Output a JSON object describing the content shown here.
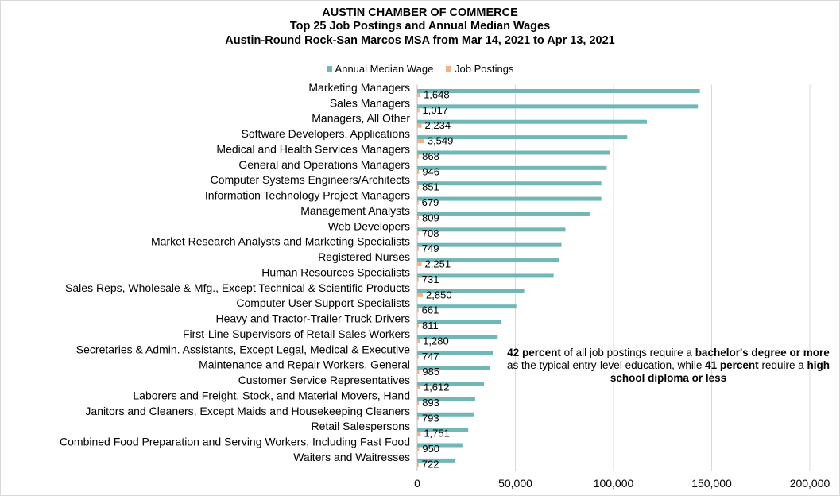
{
  "chart_data": {
    "type": "bar",
    "orientation": "horizontal",
    "title": [
      "AUSTIN CHAMBER OF COMMERCE",
      "Top 25 Job Postings and Annual Median Wages",
      "Austin-Round Rock-San Marcos MSA from Mar 14, 2021 to Apr 13, 2021"
    ],
    "xlabel": "",
    "ylabel": "",
    "xlim": [
      0,
      200000
    ],
    "x_ticks": [
      "0",
      "50,000",
      "100,000",
      "150,000",
      "200,000"
    ],
    "grid": "vertical",
    "legend_position": "top",
    "categories": [
      "Marketing Managers",
      "Sales Managers",
      "Managers, All Other",
      "Software Developers, Applications",
      "Medical and Health Services Managers",
      "General and Operations Managers",
      "Computer Systems Engineers/Architects",
      "Information Technology Project Managers",
      "Management Analysts",
      "Web Developers",
      "Market Research Analysts and Marketing Specialists",
      "Registered Nurses",
      "Human Resources Specialists",
      "Sales Reps, Wholesale & Mfg., Except Technical & Scientific Products",
      "Computer User Support Specialists",
      "Heavy and Tractor-Trailer Truck Drivers",
      "First-Line Supervisors of Retail Sales Workers",
      "Secretaries & Admin. Assistants, Except Legal, Medical & Executive",
      "Maintenance and Repair Workers, General",
      "Customer Service Representatives",
      "Laborers and Freight, Stock, and Material Movers, Hand",
      "Janitors and Cleaners, Except Maids and Housekeeping Cleaners",
      "Retail Salespersons",
      "Combined Food Preparation and Serving Workers, Including Fast Food",
      "Waiters and Waitresses"
    ],
    "series": [
      {
        "name": "Annual Median Wage",
        "color": "#70b8b8",
        "values": [
          144000,
          143000,
          117000,
          107000,
          98000,
          96500,
          93800,
          93800,
          88000,
          75500,
          73500,
          72500,
          69500,
          54500,
          50500,
          43000,
          41000,
          38500,
          37000,
          34000,
          29500,
          29000,
          26000,
          23000,
          19500
        ]
      },
      {
        "name": "Job Postings",
        "color": "#f4b183",
        "values": [
          1648,
          1017,
          2234,
          3549,
          868,
          946,
          851,
          679,
          809,
          708,
          749,
          2251,
          731,
          2850,
          661,
          811,
          1280,
          747,
          985,
          1612,
          893,
          793,
          1751,
          950,
          722
        ],
        "labels": [
          "1,648",
          "1,017",
          "2,234",
          "3,549",
          "868",
          "946",
          "851",
          "679",
          "809",
          "708",
          "749",
          "2,251",
          "731",
          "2,850",
          "661",
          "811",
          "1,280",
          "747",
          "985",
          "1,612",
          "893",
          "793",
          "1,751",
          "950",
          "722"
        ]
      }
    ]
  },
  "annotation": {
    "parts": [
      {
        "text": "42 percent",
        "bold": true
      },
      {
        "text": " of all job postings require a ",
        "bold": false
      },
      {
        "text": "bachelor's degree or more",
        "bold": true
      },
      {
        "text": " as the typical entry-level education, while ",
        "bold": false
      },
      {
        "text": "41 percent",
        "bold": true
      },
      {
        "text": " require a ",
        "bold": false
      },
      {
        "text": "high school diploma or less",
        "bold": true
      }
    ]
  }
}
